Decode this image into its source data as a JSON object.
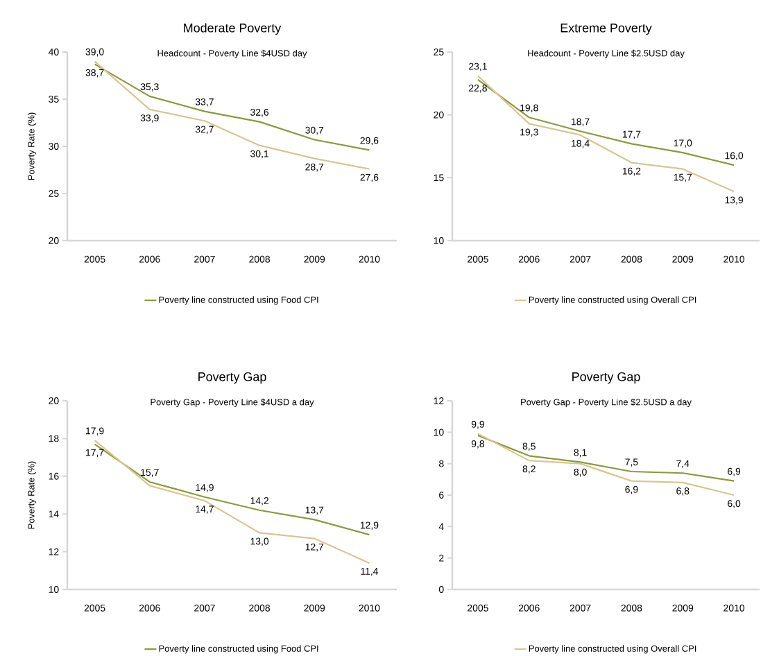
{
  "chart_data": [
    {
      "type": "line",
      "title": "Moderate Poverty",
      "subtitle": "Headcount - Poverty Line $4USD  day",
      "ylabel": "Poverty Rate (%)",
      "categories": [
        "2005",
        "2006",
        "2007",
        "2008",
        "2009",
        "2010"
      ],
      "ylim": [
        20,
        40
      ],
      "yticks": [
        20,
        25,
        30,
        35,
        40
      ],
      "legend": "bottom",
      "series": [
        {
          "name": "Poverty line constructed using Food CPI",
          "color": "#8a9a3a",
          "values": [
            38.7,
            35.3,
            33.7,
            32.6,
            30.7,
            29.6
          ],
          "value_labels": [
            "38,7",
            "35,3",
            "33,7",
            "32,6",
            "30,7",
            "29,6"
          ]
        },
        {
          "color": "#d8c690",
          "values": [
            39.0,
            33.9,
            32.7,
            30.1,
            28.7,
            27.6
          ],
          "value_labels": [
            "39,0",
            "33,9",
            "32,7",
            "30,1",
            "28,7",
            "27,6"
          ]
        }
      ]
    },
    {
      "type": "line",
      "title": "Extreme Poverty",
      "subtitle": "Headcount - Poverty Line $2.5USD  day",
      "categories": [
        "2005",
        "2006",
        "2007",
        "2008",
        "2009",
        "2010"
      ],
      "ylim": [
        10,
        25
      ],
      "yticks": [
        10,
        15,
        20,
        25
      ],
      "legend": "bottom",
      "series": [
        {
          "color": "#8a9a3a",
          "values": [
            22.8,
            19.8,
            18.7,
            17.7,
            17.0,
            16.0
          ],
          "value_labels": [
            "22,8",
            "19,8",
            "18,7",
            "17,7",
            "17,0",
            "16,0"
          ]
        },
        {
          "name": "Poverty line constructed using Overall CPI",
          "color": "#d8c690",
          "values": [
            23.1,
            19.3,
            18.4,
            16.2,
            15.7,
            13.9
          ],
          "value_labels": [
            "23,1",
            "19,3",
            "18,4",
            "16,2",
            "15,7",
            "13,9"
          ]
        }
      ]
    },
    {
      "type": "line",
      "title": "Poverty Gap",
      "subtitle": "Poverty Gap - Poverty Line $4USD  a day",
      "ylabel": "Poverty Rate (%)",
      "categories": [
        "2005",
        "2006",
        "2007",
        "2008",
        "2009",
        "2010"
      ],
      "ylim": [
        10,
        20
      ],
      "yticks": [
        10,
        12,
        14,
        16,
        18,
        20
      ],
      "legend": "bottom",
      "series": [
        {
          "name": "Poverty line constructed using Food CPI",
          "color": "#8a9a3a",
          "values": [
            17.7,
            15.7,
            14.9,
            14.2,
            13.7,
            12.9
          ],
          "value_labels": [
            "17,7",
            "15,7",
            "14,9",
            "14,2",
            "13,7",
            "12,9"
          ]
        },
        {
          "color": "#d8c690",
          "values": [
            17.9,
            15.5,
            14.7,
            13.0,
            12.7,
            11.4
          ],
          "value_labels": [
            "17,9",
            null,
            "14,7",
            "13,0",
            "12,7",
            "11,4"
          ]
        }
      ]
    },
    {
      "type": "line",
      "title": "Poverty Gap",
      "subtitle": "Poverty Gap - Poverty Line $2.5USD  a day",
      "categories": [
        "2005",
        "2006",
        "2007",
        "2008",
        "2009",
        "2010"
      ],
      "ylim": [
        0,
        12
      ],
      "yticks": [
        0,
        2,
        4,
        6,
        8,
        10,
        12
      ],
      "legend": "bottom",
      "series": [
        {
          "color": "#8a9a3a",
          "values": [
            9.8,
            8.5,
            8.1,
            7.5,
            7.4,
            6.9
          ],
          "value_labels": [
            "9,8",
            "8,5",
            "8,1",
            "7,5",
            "7,4",
            "6,9"
          ]
        },
        {
          "name": "Poverty line constructed using Overall CPI",
          "color": "#d8c690",
          "values": [
            9.9,
            8.2,
            8.0,
            6.9,
            6.8,
            6.0
          ],
          "value_labels": [
            "9,9",
            "8,2",
            "8,0",
            "6,9",
            "6,8",
            "6,0"
          ]
        }
      ]
    }
  ]
}
